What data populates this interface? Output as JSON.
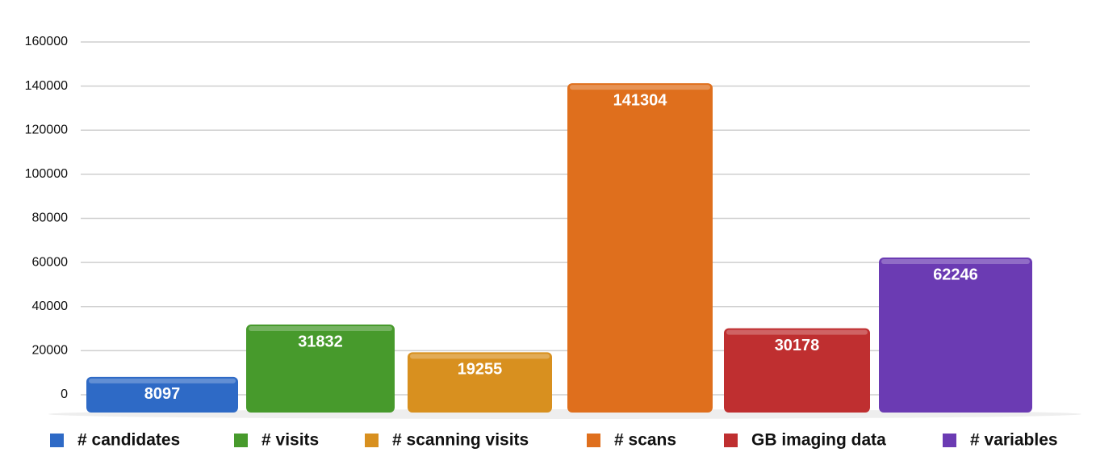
{
  "chart_data": {
    "type": "bar",
    "categories": [
      "# candidates",
      "# visits",
      "# scanning visits",
      "# scans",
      "GB imaging data",
      "# variables"
    ],
    "values": [
      8097,
      31832,
      19255,
      141304,
      30178,
      62246
    ],
    "colors": [
      "#2e6ac6",
      "#479a2c",
      "#d8901f",
      "#df6f1d",
      "#bf2f30",
      "#6b3bb3"
    ],
    "ylim": [
      0,
      160000
    ],
    "yticks": [
      0,
      20000,
      40000,
      60000,
      80000,
      100000,
      120000,
      140000,
      160000
    ],
    "grid": true,
    "legend": "bottom"
  }
}
